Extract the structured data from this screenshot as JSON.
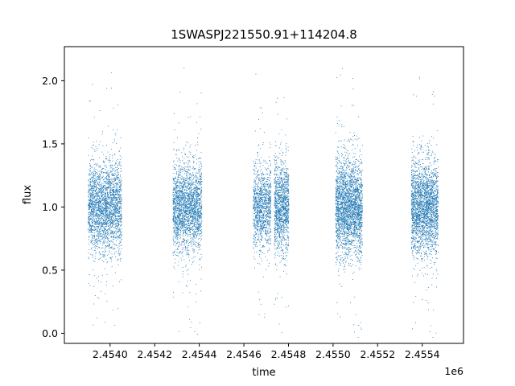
{
  "chart_data": {
    "type": "scatter",
    "title": "1SWASPJ221550.91+114204.8",
    "xlabel": "time",
    "ylabel": "flux",
    "x_offset_label": "1e6",
    "x_scale": 1000000,
    "xlim": [
      2453795,
      2455585
    ],
    "ylim": [
      -0.08,
      2.27
    ],
    "xticks": [
      2454000,
      2454200,
      2454400,
      2454600,
      2454800,
      2455000,
      2455200,
      2455400
    ],
    "xtick_labels": [
      "2.4540",
      "2.4542",
      "2.4544",
      "2.4546",
      "2.4548",
      "2.4550",
      "2.4552",
      "2.4554"
    ],
    "yticks": [
      0.0,
      0.5,
      1.0,
      1.5,
      2.0
    ],
    "ytick_labels": [
      "0.0",
      "0.5",
      "1.0",
      "1.5",
      "2.0"
    ],
    "grid": false,
    "marker_color": "#1f77b4",
    "seasons": [
      {
        "x_range": [
          2453900,
          2454050
        ],
        "center": 1.0,
        "spread": 0.18,
        "points": 2600
      },
      {
        "x_range": [
          2454280,
          2454410
        ],
        "center": 1.0,
        "spread": 0.17,
        "points": 2300
      },
      {
        "x_range": [
          2454640,
          2454720
        ],
        "center": 1.0,
        "spread": 0.16,
        "points": 1200
      },
      {
        "x_range": [
          2454735,
          2454800
        ],
        "center": 1.0,
        "spread": 0.18,
        "points": 1300
      },
      {
        "x_range": [
          2455010,
          2455130
        ],
        "center": 1.0,
        "spread": 0.19,
        "points": 2700
      },
      {
        "x_range": [
          2455350,
          2455470
        ],
        "center": 1.0,
        "spread": 0.18,
        "points": 2500
      }
    ]
  }
}
